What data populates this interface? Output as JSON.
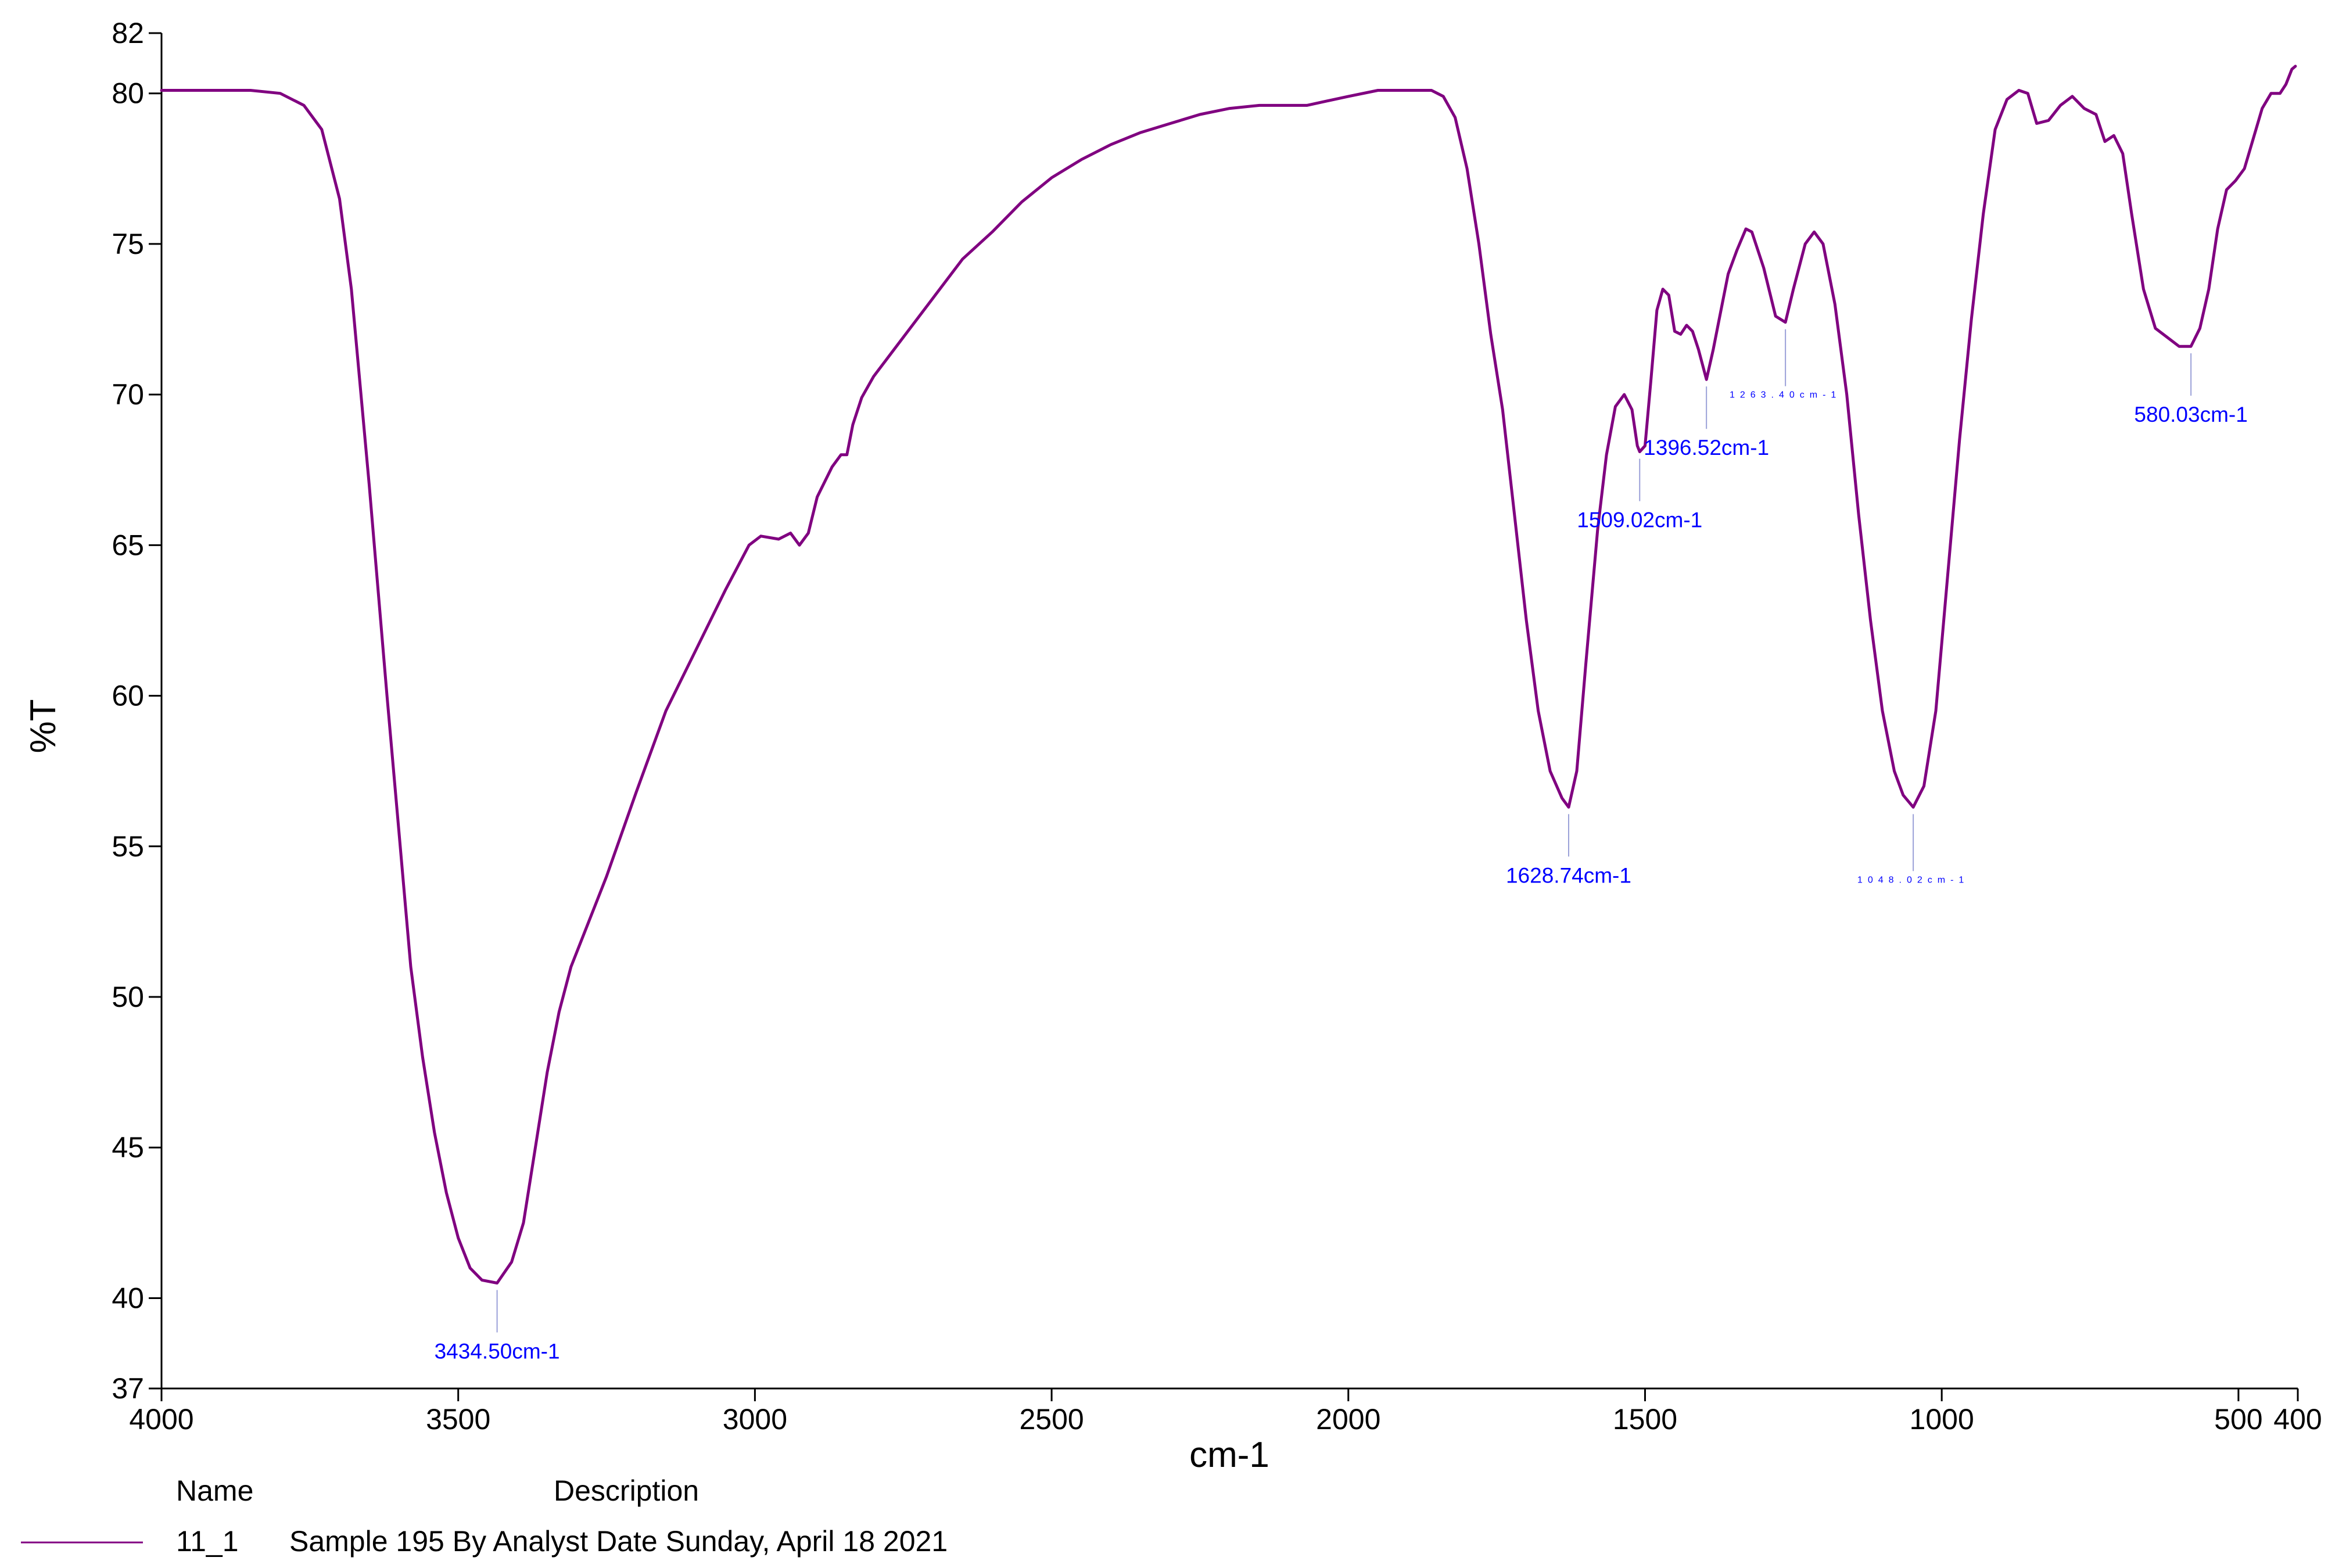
{
  "chart_data": {
    "type": "line",
    "xlabel": "cm-1",
    "ylabel": "%T",
    "xlim": [
      4000,
      400
    ],
    "ylim": [
      37,
      82
    ],
    "x_ticks": [
      4000,
      3500,
      3000,
      2500,
      2000,
      1500,
      1000,
      500,
      400
    ],
    "y_ticks": [
      37,
      40,
      45,
      50,
      55,
      60,
      65,
      70,
      75,
      80,
      82
    ],
    "grid": false,
    "series": [
      {
        "name": "11_1",
        "color": "#800080",
        "points": [
          [
            4000,
            80.1
          ],
          [
            3900,
            80.1
          ],
          [
            3850,
            80.1
          ],
          [
            3800,
            80.0
          ],
          [
            3760,
            79.6
          ],
          [
            3730,
            78.8
          ],
          [
            3700,
            76.5
          ],
          [
            3680,
            73.5
          ],
          [
            3650,
            67.0
          ],
          [
            3620,
            60.0
          ],
          [
            3600,
            55.5
          ],
          [
            3580,
            51.0
          ],
          [
            3560,
            48.0
          ],
          [
            3540,
            45.5
          ],
          [
            3520,
            43.5
          ],
          [
            3500,
            42.0
          ],
          [
            3480,
            41.0
          ],
          [
            3460,
            40.6
          ],
          [
            3434.5,
            40.5
          ],
          [
            3410,
            41.2
          ],
          [
            3390,
            42.5
          ],
          [
            3370,
            45.0
          ],
          [
            3350,
            47.5
          ],
          [
            3330,
            49.5
          ],
          [
            3310,
            51.0
          ],
          [
            3280,
            52.5
          ],
          [
            3250,
            54.0
          ],
          [
            3200,
            56.8
          ],
          [
            3150,
            59.5
          ],
          [
            3100,
            61.5
          ],
          [
            3050,
            63.5
          ],
          [
            3010,
            65.0
          ],
          [
            2990,
            65.3
          ],
          [
            2960,
            65.2
          ],
          [
            2940,
            65.4
          ],
          [
            2925,
            65.0
          ],
          [
            2910,
            65.4
          ],
          [
            2895,
            66.6
          ],
          [
            2870,
            67.6
          ],
          [
            2855,
            68.0
          ],
          [
            2845,
            68.0
          ],
          [
            2835,
            69.0
          ],
          [
            2820,
            69.9
          ],
          [
            2800,
            70.6
          ],
          [
            2750,
            71.9
          ],
          [
            2700,
            73.2
          ],
          [
            2650,
            74.5
          ],
          [
            2600,
            75.4
          ],
          [
            2550,
            76.4
          ],
          [
            2500,
            77.2
          ],
          [
            2450,
            77.8
          ],
          [
            2400,
            78.3
          ],
          [
            2350,
            78.7
          ],
          [
            2300,
            79.0
          ],
          [
            2250,
            79.3
          ],
          [
            2200,
            79.5
          ],
          [
            2150,
            79.6
          ],
          [
            2100,
            79.6
          ],
          [
            2070,
            79.6
          ],
          [
            2000,
            79.9
          ],
          [
            1950,
            80.1
          ],
          [
            1900,
            80.1
          ],
          [
            1860,
            80.1
          ],
          [
            1840,
            79.9
          ],
          [
            1820,
            79.2
          ],
          [
            1800,
            77.5
          ],
          [
            1780,
            75.0
          ],
          [
            1760,
            72.0
          ],
          [
            1740,
            69.5
          ],
          [
            1720,
            66.0
          ],
          [
            1700,
            62.5
          ],
          [
            1680,
            59.5
          ],
          [
            1660,
            57.5
          ],
          [
            1640,
            56.6
          ],
          [
            1628.74,
            56.3
          ],
          [
            1615,
            57.5
          ],
          [
            1600,
            61.0
          ],
          [
            1580,
            65.5
          ],
          [
            1565,
            68.0
          ],
          [
            1550,
            69.6
          ],
          [
            1535,
            70.0
          ],
          [
            1522,
            69.5
          ],
          [
            1513,
            68.3
          ],
          [
            1509.02,
            68.1
          ],
          [
            1500,
            68.3
          ],
          [
            1490,
            70.5
          ],
          [
            1480,
            72.8
          ],
          [
            1470,
            73.5
          ],
          [
            1460,
            73.3
          ],
          [
            1450,
            72.1
          ],
          [
            1440,
            72.0
          ],
          [
            1430,
            72.3
          ],
          [
            1420,
            72.1
          ],
          [
            1410,
            71.5
          ],
          [
            1396.52,
            70.5
          ],
          [
            1385,
            71.5
          ],
          [
            1375,
            72.5
          ],
          [
            1360,
            74.0
          ],
          [
            1345,
            74.8
          ],
          [
            1330,
            75.5
          ],
          [
            1320,
            75.4
          ],
          [
            1300,
            74.2
          ],
          [
            1280,
            72.6
          ],
          [
            1263.4,
            72.4
          ],
          [
            1250,
            73.5
          ],
          [
            1230,
            75.0
          ],
          [
            1215,
            75.4
          ],
          [
            1200,
            75.0
          ],
          [
            1180,
            73.0
          ],
          [
            1160,
            70.0
          ],
          [
            1140,
            66.0
          ],
          [
            1120,
            62.5
          ],
          [
            1100,
            59.5
          ],
          [
            1080,
            57.5
          ],
          [
            1065,
            56.7
          ],
          [
            1048.02,
            56.3
          ],
          [
            1030,
            57.0
          ],
          [
            1010,
            59.5
          ],
          [
            990,
            64.0
          ],
          [
            970,
            68.5
          ],
          [
            950,
            72.5
          ],
          [
            930,
            76.0
          ],
          [
            910,
            78.8
          ],
          [
            890,
            79.8
          ],
          [
            870,
            80.1
          ],
          [
            855,
            80.0
          ],
          [
            840,
            79.0
          ],
          [
            820,
            79.1
          ],
          [
            800,
            79.6
          ],
          [
            780,
            79.9
          ],
          [
            760,
            79.5
          ],
          [
            740,
            79.3
          ],
          [
            725,
            78.4
          ],
          [
            710,
            78.6
          ],
          [
            695,
            78.0
          ],
          [
            680,
            76.0
          ],
          [
            660,
            73.5
          ],
          [
            640,
            72.2
          ],
          [
            620,
            71.9
          ],
          [
            600,
            71.6
          ],
          [
            580.03,
            71.6
          ],
          [
            565,
            72.2
          ],
          [
            550,
            73.5
          ],
          [
            535,
            75.5
          ],
          [
            520,
            76.8
          ],
          [
            505,
            77.1
          ],
          [
            490,
            77.5
          ],
          [
            475,
            78.5
          ],
          [
            460,
            79.5
          ],
          [
            445,
            80.0
          ],
          [
            430,
            80.0
          ],
          [
            420,
            80.3
          ],
          [
            410,
            80.8
          ],
          [
            404,
            80.9
          ]
        ]
      }
    ],
    "annotations": [
      {
        "text": "3434.50cm-1",
        "x": 3434.5,
        "y": 40.5
      },
      {
        "text": "1628.74cm-1",
        "x": 1628.74,
        "y": 56.3
      },
      {
        "text": "1509.02cm-1",
        "x": 1509.02,
        "y": 68.1
      },
      {
        "text": "1396.52cm-1",
        "x": 1396.52,
        "y": 70.5
      },
      {
        "text": "1263.40cm-1",
        "x": 1263.4,
        "y": 72.4,
        "tiny": true
      },
      {
        "text": "1048.02cm-1",
        "x": 1048.02,
        "y": 56.3,
        "tiny": true
      },
      {
        "text": "580.03cm-1",
        "x": 580.03,
        "y": 71.6
      }
    ]
  },
  "legend": {
    "header_name": "Name",
    "header_description": "Description",
    "items": [
      {
        "name": "11_1",
        "description": "Sample 195 By Analyst Date Sunday, April 18 2021",
        "color": "#800080"
      }
    ]
  }
}
